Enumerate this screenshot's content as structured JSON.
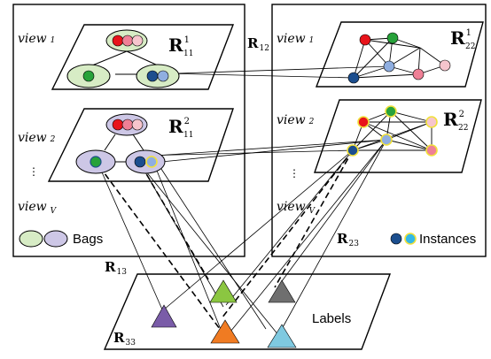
{
  "colors": {
    "red": "#e8141b",
    "green": "#27a23a",
    "pink": "#ef8096",
    "light_pink": "#f6c5cd",
    "dark_blue": "#1c4e8e",
    "light_blue": "#8faee0",
    "bag_green": "#d7ecc5",
    "bag_purple": "#cdc7e6",
    "yellow_ring": "#f0e03a",
    "purple_tri": "#7a5ca8",
    "green_tri": "#8bc641",
    "gray_tri": "#6f6f6f",
    "orange_tri": "#f07b22",
    "cyan_tri": "#7fc9e0",
    "legend_cyan": "#33b8e6"
  },
  "left_panel": {
    "view1": {
      "base": "view",
      "sub": "1"
    },
    "view2": {
      "base": "view",
      "sub": "2"
    },
    "viewV": {
      "base": "view",
      "sub": "V"
    },
    "ellipsis": "⋮",
    "r11_1": {
      "base": "R",
      "sup": "1",
      "sub": "11"
    },
    "r11_2": {
      "base": "R",
      "sup": "2",
      "sub": "11"
    },
    "legend_bags": "Bags"
  },
  "right_panel": {
    "view1": {
      "base": "view",
      "sub": "1"
    },
    "view2": {
      "base": "view",
      "sub": "2"
    },
    "viewV": {
      "base": "view",
      "sub": "V"
    },
    "ellipsis": "⋮",
    "r22_1": {
      "base": "R",
      "sup": "1",
      "sub": "22"
    },
    "r22_2": {
      "base": "R",
      "sup": "2",
      "sub": "22"
    },
    "legend_instances": "Instances"
  },
  "relations": {
    "r12": {
      "base": "R",
      "sub": "12"
    },
    "r13": {
      "base": "R",
      "sub": "13"
    },
    "r23": {
      "base": "R",
      "sub": "23"
    },
    "r33": {
      "base": "R",
      "sub": "33"
    }
  },
  "labels_plane": {
    "title": "Labels"
  }
}
